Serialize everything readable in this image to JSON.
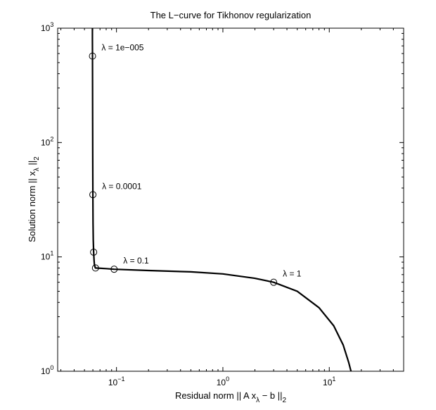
{
  "chart_data": {
    "type": "line",
    "title": "The L−curve for Tikhonov regularization",
    "xlabel": {
      "pre": "Residual norm || A x",
      "sub1": "λ",
      "mid": " − b ||",
      "sub2": "2"
    },
    "ylabel": {
      "pre": "Solution norm || x",
      "sub1": "λ",
      "mid": " ||",
      "sub2": "2"
    },
    "xscale": "log",
    "yscale": "log",
    "xlim": [
      0.028,
      50
    ],
    "ylim": [
      1,
      1000
    ],
    "x_ticks": [
      {
        "value": 0.1,
        "base": "10",
        "exp": "−1"
      },
      {
        "value": 1,
        "base": "10",
        "exp": "0"
      },
      {
        "value": 10,
        "base": "10",
        "exp": "1"
      }
    ],
    "y_ticks": [
      {
        "value": 1,
        "base": "10",
        "exp": "0"
      },
      {
        "value": 10,
        "base": "10",
        "exp": "1"
      },
      {
        "value": 100,
        "base": "10",
        "exp": "2"
      },
      {
        "value": 1000,
        "base": "10",
        "exp": "3"
      }
    ],
    "grid": false,
    "series": [
      {
        "points": [
          [
            0.0594,
            1000
          ],
          [
            0.0594,
            800
          ],
          [
            0.0595,
            570
          ],
          [
            0.0596,
            300
          ],
          [
            0.0597,
            150
          ],
          [
            0.0598,
            80
          ],
          [
            0.0599,
            50
          ],
          [
            0.06,
            35
          ],
          [
            0.0602,
            20
          ],
          [
            0.0605,
            14
          ],
          [
            0.061,
            11
          ],
          [
            0.0615,
            9.5
          ],
          [
            0.062,
            8.6
          ],
          [
            0.063,
            8.1
          ],
          [
            0.0635,
            8.0
          ],
          [
            0.08,
            7.9
          ],
          [
            0.095,
            7.8
          ],
          [
            0.2,
            7.6
          ],
          [
            0.5,
            7.4
          ],
          [
            1.0,
            7.1
          ],
          [
            2.0,
            6.5
          ],
          [
            3.0,
            6.0
          ],
          [
            5.0,
            5.0
          ],
          [
            8.0,
            3.6
          ],
          [
            11.0,
            2.5
          ],
          [
            13.5,
            1.7
          ],
          [
            15.2,
            1.2
          ],
          [
            16.0,
            1.0
          ]
        ]
      }
    ],
    "markers": [
      [
        0.0595,
        570
      ],
      [
        0.06,
        35
      ],
      [
        0.061,
        11
      ],
      [
        0.0635,
        8.0
      ],
      [
        0.095,
        7.8
      ],
      [
        3.0,
        6.0
      ]
    ],
    "annotations": [
      {
        "text": "λ = 1e−005",
        "x": 0.0594,
        "y": 570
      },
      {
        "text": "λ = 0.0001",
        "x": 0.06,
        "y": 35
      },
      {
        "text": "λ = 0.1",
        "x": 0.095,
        "y": 7.8
      },
      {
        "text": "λ = 1",
        "x": 3.0,
        "y": 6.0
      }
    ]
  }
}
